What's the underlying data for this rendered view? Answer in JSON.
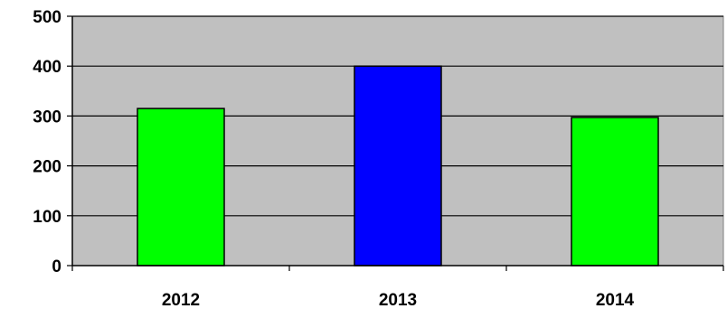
{
  "chart_data": {
    "type": "bar",
    "categories": [
      "2012",
      "2013",
      "2014"
    ],
    "values": [
      315,
      400,
      297
    ],
    "bar_colors": [
      "#00ff00",
      "#0000ff",
      "#00ff00"
    ],
    "ylim": [
      0,
      500
    ],
    "yticks": [
      0,
      100,
      200,
      300,
      400,
      500
    ],
    "ytick_labels": [
      "0",
      "100",
      "200",
      "300",
      "400",
      "500"
    ],
    "title": "",
    "xlabel": "",
    "ylabel": "",
    "grid": true,
    "legend": "none",
    "plot_background": "#c0c0c0"
  }
}
